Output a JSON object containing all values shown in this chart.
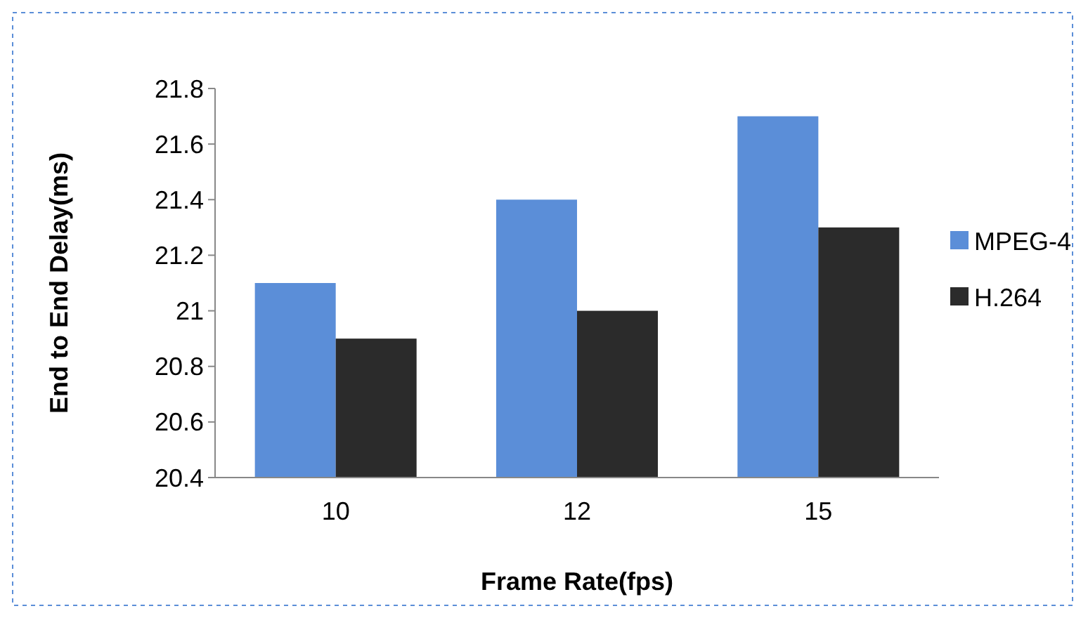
{
  "chart_data": {
    "type": "bar",
    "xlabel": "Frame Rate(fps)",
    "ylabel": "End to End Delay(ms)",
    "categories": [
      "10",
      "12",
      "15"
    ],
    "series": [
      {
        "name": "MPEG-4",
        "color": "#5b8ed8",
        "values": [
          21.1,
          21.4,
          21.7
        ]
      },
      {
        "name": "H.264",
        "color": "#2b2b2b",
        "values": [
          20.9,
          21.0,
          21.3
        ]
      }
    ],
    "ylim": [
      20.4,
      21.8
    ],
    "yticks": [
      20.4,
      20.6,
      20.8,
      21,
      21.2,
      21.4,
      21.6,
      21.8
    ],
    "legend": "right"
  }
}
